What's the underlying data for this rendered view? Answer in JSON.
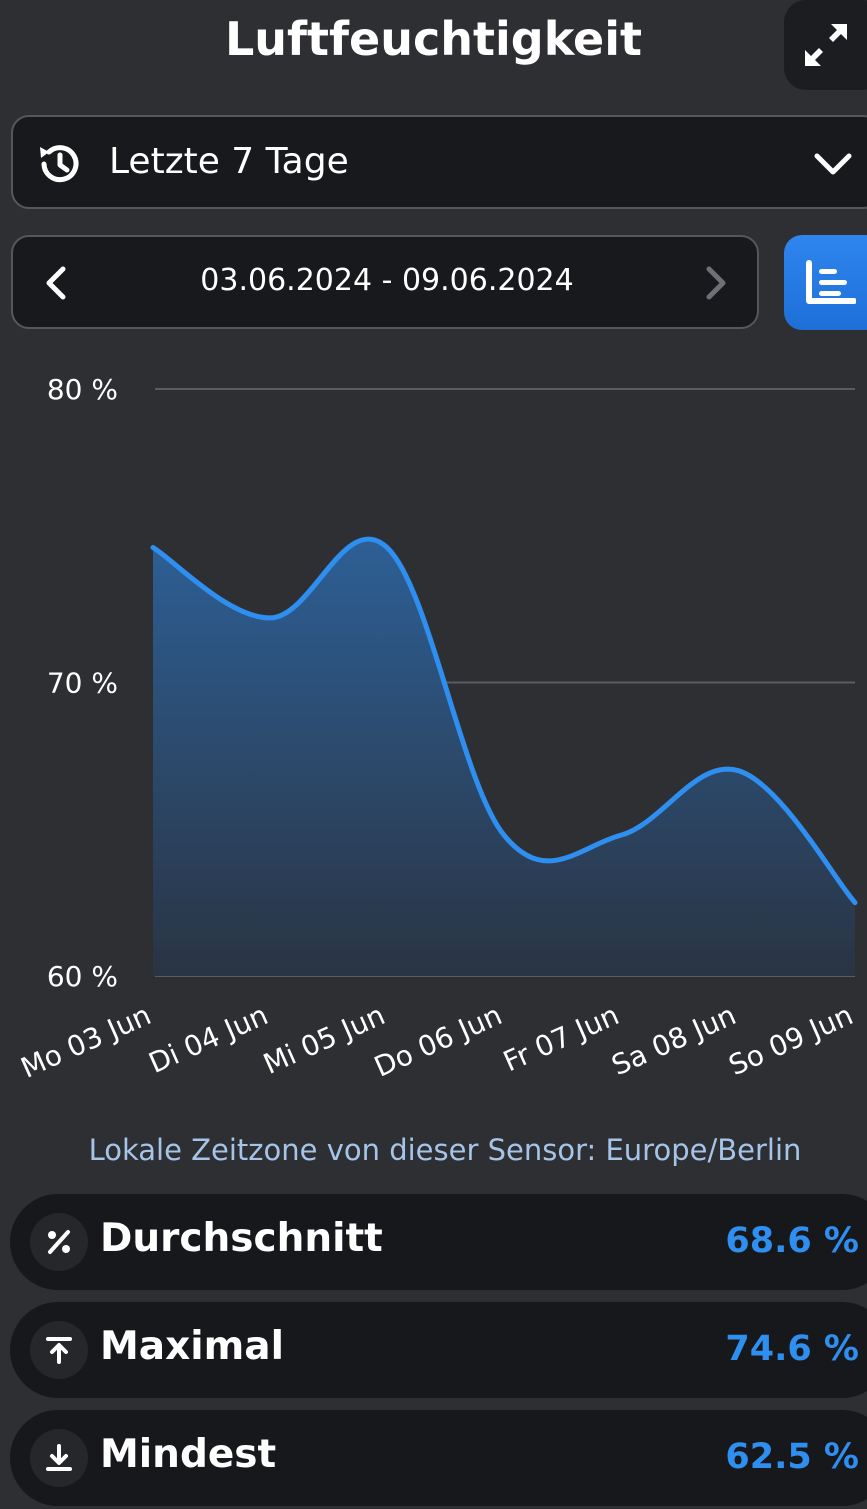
{
  "header": {
    "title": "Luftfeuchtigkeit",
    "expand_icon": "expand-arrows-icon"
  },
  "range_select": {
    "label": "Letzte 7 Tage",
    "icon": "history-icon"
  },
  "date_nav": {
    "range": "03.06.2024 - 09.06.2024"
  },
  "chart_data": {
    "type": "area",
    "categories": [
      "Mo 03 Jun",
      "Di 04 Jun",
      "Mi 05 Jun",
      "Do 06 Jun",
      "Fr 07 Jun",
      "Sa 08 Jun",
      "So 09 Jun"
    ],
    "series": [
      {
        "values": [
          74.6,
          72.2,
          74.6,
          64.8,
          64.8,
          67.0,
          62.5
        ]
      }
    ],
    "ylim": [
      60,
      80
    ],
    "yticks": [
      60,
      70,
      80
    ],
    "ytick_labels": [
      "60 %",
      "70 %",
      "80 %"
    ],
    "grid": true,
    "line_color": "#2f8ff0"
  },
  "timezone_note": "Lokale Zeitzone von dieser Sensor: Europe/Berlin",
  "stats": [
    {
      "label": "Durchschnitt",
      "value": "68.6 %",
      "icon": "percent-icon"
    },
    {
      "label": "Maximal",
      "value": "74.6 %",
      "icon": "arrow-up-to-line-icon"
    },
    {
      "label": "Mindest",
      "value": "62.5 %",
      "icon": "download-arrow-icon"
    }
  ],
  "colors": {
    "accent": "#2f8ff0",
    "background": "#2e2f33",
    "panel": "#18191c"
  }
}
